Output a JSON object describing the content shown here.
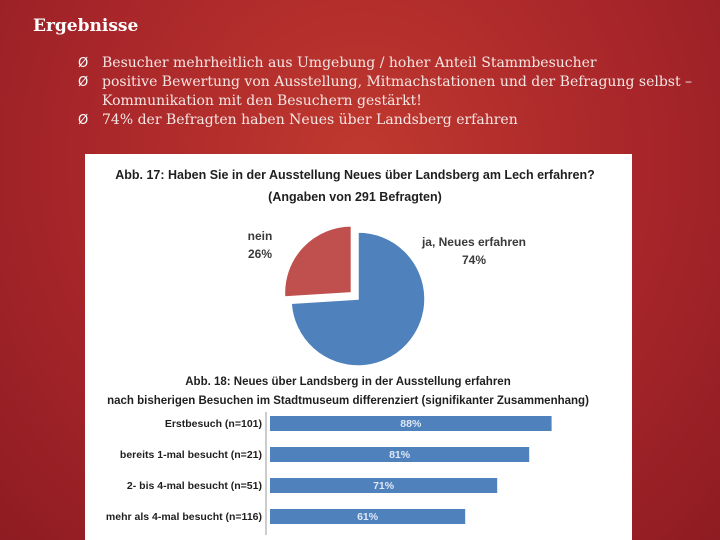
{
  "slide": {
    "title": "Ergebnisse",
    "bullets": [
      {
        "marker": "Ø",
        "text": "Besucher mehrheitlich aus Umgebung / hoher Anteil Stammbesucher"
      },
      {
        "marker": "Ø",
        "text": "positive Bewertung von Ausstellung, Mitmachstationen und der Befragung selbst – Kommunikation mit den Besuchern gestärkt!"
      },
      {
        "marker": "Ø",
        "text": "74% der Befragten haben Neues über Landsberg erfahren"
      }
    ]
  },
  "chart_data": [
    {
      "type": "pie",
      "title": "Abb. 17: Haben Sie in der Ausstellung Neues über Landsberg am Lech erfahren?",
      "subtitle": "(Angaben von 291 Befragten)",
      "slices": [
        {
          "label": "ja, Neues erfahren",
          "value": 74,
          "value_label": "74%",
          "color": "#4f81bd"
        },
        {
          "label": "nein",
          "value": 26,
          "value_label": "26%",
          "color": "#c0504d"
        }
      ]
    },
    {
      "type": "bar",
      "orientation": "horizontal",
      "title": "Abb. 18: Neues über Landsberg in der Ausstellung erfahren",
      "subtitle": "nach bisherigen Besuchen im Stadtmuseum differenziert (signifikanter Zusammenhang)",
      "categories": [
        "Erstbesuch (n=101)",
        "bereits 1-mal besucht (n=21)",
        "2- bis 4-mal besucht (n=51)",
        "mehr als 4-mal besucht (n=116)"
      ],
      "values": [
        88,
        81,
        71,
        61
      ],
      "value_labels": [
        "88%",
        "81%",
        "71%",
        "61%"
      ],
      "xlim": [
        0,
        100
      ],
      "color": "#4f81bd"
    }
  ]
}
